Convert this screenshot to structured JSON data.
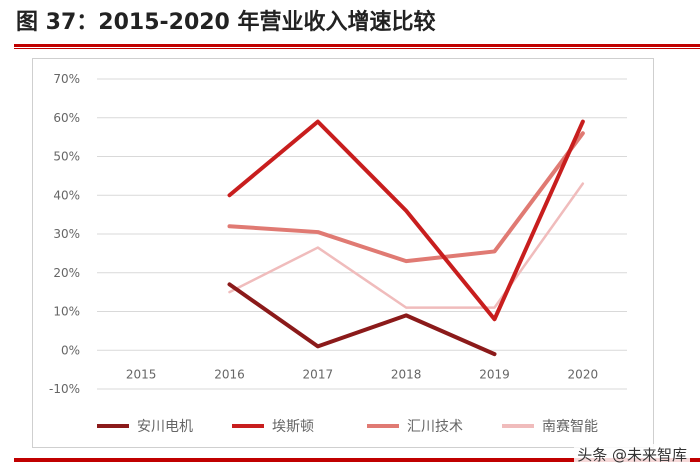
{
  "header": {
    "title": "图 37：2015-2020 年营业收入增速比较"
  },
  "watermark": "头条 @未来智库",
  "chart_data": {
    "type": "line",
    "categories": [
      "2015",
      "2016",
      "2017",
      "2018",
      "2019",
      "2020"
    ],
    "y_ticks": [
      "70%",
      "60%",
      "50%",
      "40%",
      "30%",
      "20%",
      "10%",
      "0%",
      "-10%"
    ],
    "ylim": [
      -10,
      70
    ],
    "unit": "%",
    "grid": true,
    "legend_position": "bottom",
    "series": [
      {
        "name": "安川电机",
        "color": "#8b1a1a",
        "values": [
          null,
          17,
          1,
          9,
          -1,
          null
        ]
      },
      {
        "name": "埃斯顿",
        "color": "#c81e1e",
        "values": [
          null,
          40,
          59,
          36,
          8,
          59
        ]
      },
      {
        "name": "汇川技术",
        "color": "#e07a73",
        "values": [
          null,
          32,
          30.5,
          23,
          25.5,
          56
        ]
      },
      {
        "name": "南赛智能",
        "color": "#f0bcbc",
        "values": [
          null,
          15,
          26.5,
          11,
          11,
          43
        ]
      }
    ]
  }
}
